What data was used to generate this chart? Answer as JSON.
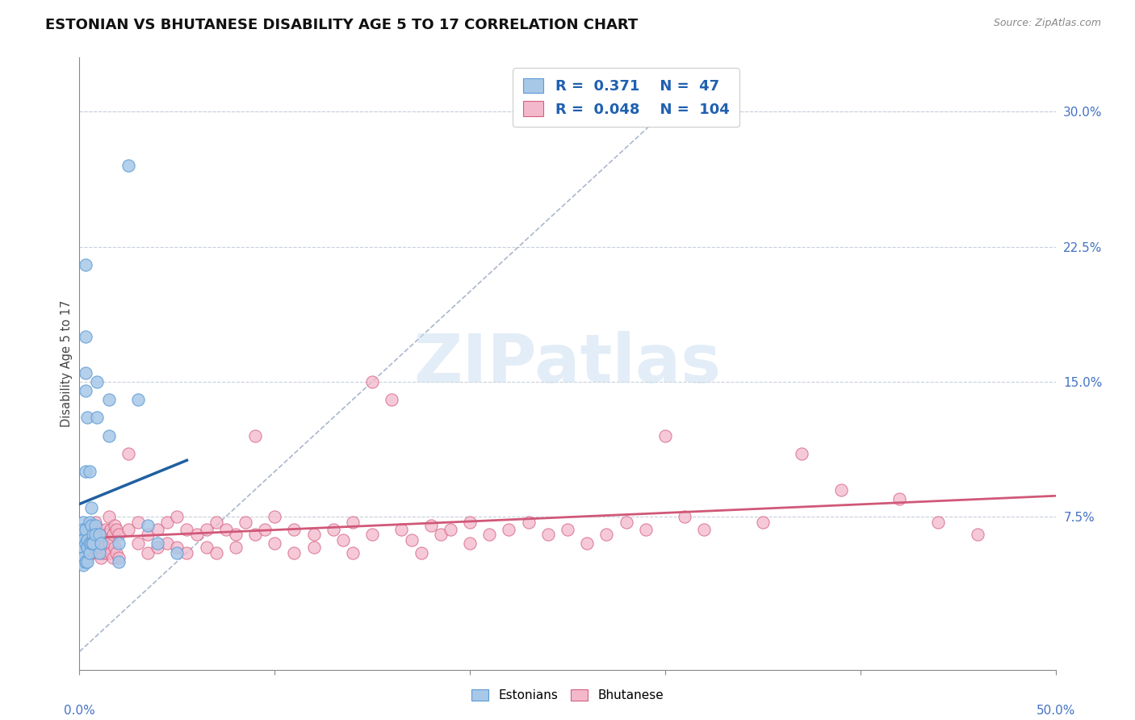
{
  "title": "ESTONIAN VS BHUTANESE DISABILITY AGE 5 TO 17 CORRELATION CHART",
  "source": "Source: ZipAtlas.com",
  "ylabel": "Disability Age 5 to 17",
  "ylabel_right_labels": [
    "7.5%",
    "15.0%",
    "22.5%",
    "30.0%"
  ],
  "ylabel_right_positions": [
    0.075,
    0.15,
    0.225,
    0.3
  ],
  "xlim": [
    0.0,
    0.5
  ],
  "ylim": [
    -0.01,
    0.33
  ],
  "estonian_R": 0.371,
  "estonian_N": 47,
  "bhutanese_R": 0.048,
  "bhutanese_N": 104,
  "estonian_color": "#a8c8e8",
  "estonian_edge": "#5b9bd5",
  "bhutanese_color": "#f4b8cc",
  "bhutanese_edge": "#d46080",
  "estonian_line_color": "#2060a0",
  "bhutanese_line_color": "#d05878",
  "ref_line_color": "#8898b8",
  "background_color": "#ffffff",
  "watermark": "ZIPatlas",
  "estonian_points": [
    [
      0.001,
      0.065
    ],
    [
      0.001,
      0.06
    ],
    [
      0.001,
      0.055
    ],
    [
      0.001,
      0.05
    ],
    [
      0.002,
      0.072
    ],
    [
      0.002,
      0.068
    ],
    [
      0.002,
      0.062
    ],
    [
      0.002,
      0.058
    ],
    [
      0.002,
      0.052
    ],
    [
      0.002,
      0.048
    ],
    [
      0.003,
      0.215
    ],
    [
      0.003,
      0.175
    ],
    [
      0.003,
      0.155
    ],
    [
      0.003,
      0.145
    ],
    [
      0.003,
      0.1
    ],
    [
      0.003,
      0.068
    ],
    [
      0.003,
      0.06
    ],
    [
      0.003,
      0.05
    ],
    [
      0.004,
      0.13
    ],
    [
      0.004,
      0.062
    ],
    [
      0.004,
      0.058
    ],
    [
      0.004,
      0.05
    ],
    [
      0.005,
      0.1
    ],
    [
      0.005,
      0.072
    ],
    [
      0.005,
      0.06
    ],
    [
      0.005,
      0.055
    ],
    [
      0.006,
      0.08
    ],
    [
      0.006,
      0.07
    ],
    [
      0.006,
      0.06
    ],
    [
      0.007,
      0.065
    ],
    [
      0.007,
      0.06
    ],
    [
      0.008,
      0.07
    ],
    [
      0.008,
      0.065
    ],
    [
      0.009,
      0.15
    ],
    [
      0.009,
      0.13
    ],
    [
      0.01,
      0.065
    ],
    [
      0.01,
      0.055
    ],
    [
      0.011,
      0.06
    ],
    [
      0.015,
      0.14
    ],
    [
      0.015,
      0.12
    ],
    [
      0.02,
      0.06
    ],
    [
      0.02,
      0.05
    ],
    [
      0.025,
      0.27
    ],
    [
      0.03,
      0.14
    ],
    [
      0.035,
      0.07
    ],
    [
      0.04,
      0.06
    ],
    [
      0.05,
      0.055
    ]
  ],
  "bhutanese_points": [
    [
      0.001,
      0.06
    ],
    [
      0.002,
      0.065
    ],
    [
      0.002,
      0.055
    ],
    [
      0.003,
      0.068
    ],
    [
      0.003,
      0.058
    ],
    [
      0.004,
      0.062
    ],
    [
      0.004,
      0.052
    ],
    [
      0.005,
      0.07
    ],
    [
      0.005,
      0.06
    ],
    [
      0.006,
      0.065
    ],
    [
      0.006,
      0.055
    ],
    [
      0.007,
      0.068
    ],
    [
      0.007,
      0.058
    ],
    [
      0.008,
      0.072
    ],
    [
      0.008,
      0.06
    ],
    [
      0.009,
      0.065
    ],
    [
      0.009,
      0.055
    ],
    [
      0.01,
      0.068
    ],
    [
      0.01,
      0.058
    ],
    [
      0.011,
      0.062
    ],
    [
      0.011,
      0.052
    ],
    [
      0.012,
      0.06
    ],
    [
      0.012,
      0.055
    ],
    [
      0.013,
      0.068
    ],
    [
      0.013,
      0.058
    ],
    [
      0.014,
      0.065
    ],
    [
      0.014,
      0.055
    ],
    [
      0.015,
      0.075
    ],
    [
      0.015,
      0.06
    ],
    [
      0.016,
      0.068
    ],
    [
      0.016,
      0.055
    ],
    [
      0.017,
      0.065
    ],
    [
      0.017,
      0.052
    ],
    [
      0.018,
      0.07
    ],
    [
      0.018,
      0.058
    ],
    [
      0.019,
      0.068
    ],
    [
      0.019,
      0.055
    ],
    [
      0.02,
      0.065
    ],
    [
      0.02,
      0.052
    ],
    [
      0.025,
      0.11
    ],
    [
      0.025,
      0.068
    ],
    [
      0.03,
      0.072
    ],
    [
      0.03,
      0.06
    ],
    [
      0.035,
      0.065
    ],
    [
      0.035,
      0.055
    ],
    [
      0.04,
      0.068
    ],
    [
      0.04,
      0.058
    ],
    [
      0.045,
      0.072
    ],
    [
      0.045,
      0.06
    ],
    [
      0.05,
      0.075
    ],
    [
      0.05,
      0.058
    ],
    [
      0.055,
      0.068
    ],
    [
      0.055,
      0.055
    ],
    [
      0.06,
      0.065
    ],
    [
      0.065,
      0.068
    ],
    [
      0.065,
      0.058
    ],
    [
      0.07,
      0.072
    ],
    [
      0.07,
      0.055
    ],
    [
      0.075,
      0.068
    ],
    [
      0.08,
      0.065
    ],
    [
      0.08,
      0.058
    ],
    [
      0.085,
      0.072
    ],
    [
      0.09,
      0.12
    ],
    [
      0.09,
      0.065
    ],
    [
      0.095,
      0.068
    ],
    [
      0.1,
      0.075
    ],
    [
      0.1,
      0.06
    ],
    [
      0.11,
      0.068
    ],
    [
      0.11,
      0.055
    ],
    [
      0.12,
      0.065
    ],
    [
      0.12,
      0.058
    ],
    [
      0.13,
      0.068
    ],
    [
      0.135,
      0.062
    ],
    [
      0.14,
      0.072
    ],
    [
      0.14,
      0.055
    ],
    [
      0.15,
      0.15
    ],
    [
      0.15,
      0.065
    ],
    [
      0.16,
      0.14
    ],
    [
      0.165,
      0.068
    ],
    [
      0.17,
      0.062
    ],
    [
      0.175,
      0.055
    ],
    [
      0.18,
      0.07
    ],
    [
      0.185,
      0.065
    ],
    [
      0.19,
      0.068
    ],
    [
      0.2,
      0.072
    ],
    [
      0.2,
      0.06
    ],
    [
      0.21,
      0.065
    ],
    [
      0.22,
      0.068
    ],
    [
      0.23,
      0.072
    ],
    [
      0.24,
      0.065
    ],
    [
      0.25,
      0.068
    ],
    [
      0.26,
      0.06
    ],
    [
      0.27,
      0.065
    ],
    [
      0.28,
      0.072
    ],
    [
      0.29,
      0.068
    ],
    [
      0.3,
      0.12
    ],
    [
      0.31,
      0.075
    ],
    [
      0.32,
      0.068
    ],
    [
      0.35,
      0.072
    ],
    [
      0.37,
      0.11
    ],
    [
      0.39,
      0.09
    ],
    [
      0.42,
      0.085
    ],
    [
      0.44,
      0.072
    ],
    [
      0.46,
      0.065
    ]
  ]
}
